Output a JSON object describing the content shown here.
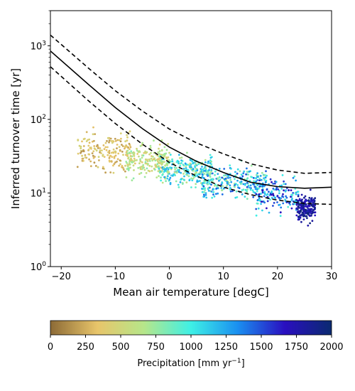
{
  "chart_data": {
    "type": "scatter",
    "title": "",
    "xlabel": "Mean air temperature [degC]",
    "ylabel": "Inferred turnover time [yr]",
    "xlim": [
      -22,
      30
    ],
    "ylim": [
      1,
      3000
    ],
    "yscale": "log",
    "grid": false,
    "xticks": [
      -20,
      -10,
      0,
      10,
      20,
      30
    ],
    "yticks": [
      {
        "value": 1,
        "label": "10",
        "exp": "0"
      },
      {
        "value": 10,
        "label": "10",
        "exp": "1"
      },
      {
        "value": 100,
        "label": "10",
        "exp": "2"
      },
      {
        "value": 1000,
        "label": "10",
        "exp": "3"
      }
    ],
    "curves": [
      {
        "style": "solid",
        "x": [
          -22,
          -15,
          -10,
          -5,
          0,
          5,
          10,
          15,
          20,
          25,
          30
        ],
        "y": [
          850,
          300,
          145,
          75,
          42,
          27,
          19,
          14,
          12.2,
          11.6,
          12.0
        ]
      },
      {
        "style": "dashed",
        "x": [
          -22,
          -15,
          -10,
          -5,
          0,
          5,
          10,
          15,
          20,
          25,
          30
        ],
        "y": [
          1400,
          500,
          245,
          130,
          74,
          48,
          34,
          25,
          20.5,
          18.5,
          19.0
        ]
      },
      {
        "style": "dashed",
        "x": [
          -22,
          -15,
          -10,
          -5,
          0,
          5,
          10,
          15,
          20,
          25,
          30
        ],
        "y": [
          520,
          180,
          88,
          46,
          26,
          17,
          12,
          9.5,
          8.0,
          7.2,
          7.0
        ]
      }
    ],
    "points_clusters": [
      {
        "t_range": [
          -17,
          -7
        ],
        "y_center": 37,
        "spread": 0.13,
        "precip": [
          150,
          500
        ],
        "n": 180
      },
      {
        "t_range": [
          -8,
          0
        ],
        "y_center": 28,
        "spread": 0.11,
        "precip": [
          350,
          800
        ],
        "n": 200
      },
      {
        "t_range": [
          -2,
          8
        ],
        "y_center": 20,
        "spread": 0.1,
        "precip": [
          600,
          1300
        ],
        "n": 260
      },
      {
        "t_range": [
          6,
          18
        ],
        "y_center": 14,
        "spread": 0.1,
        "precip": [
          700,
          1500
        ],
        "n": 260
      },
      {
        "t_range": [
          16,
          24
        ],
        "y_center": 9.5,
        "spread": 0.12,
        "precip": [
          900,
          1700
        ],
        "n": 150
      },
      {
        "t_range": [
          23.5,
          27
        ],
        "y_center": 6.3,
        "spread": 0.08,
        "precip": [
          1600,
          2000
        ],
        "n": 200
      }
    ],
    "colorbar": {
      "label": "Precipitation [mm yr",
      "label_sup": "−1",
      "label_end": "]",
      "range": [
        0,
        2000
      ],
      "ticks": [
        0,
        250,
        500,
        750,
        1000,
        1250,
        1500,
        1750,
        2000
      ],
      "colors": [
        "#8c6a36",
        "#e8c56a",
        "#b6e68a",
        "#3ef0e6",
        "#1a8ff0",
        "#2a0fc0",
        "#0a2a70"
      ]
    }
  }
}
